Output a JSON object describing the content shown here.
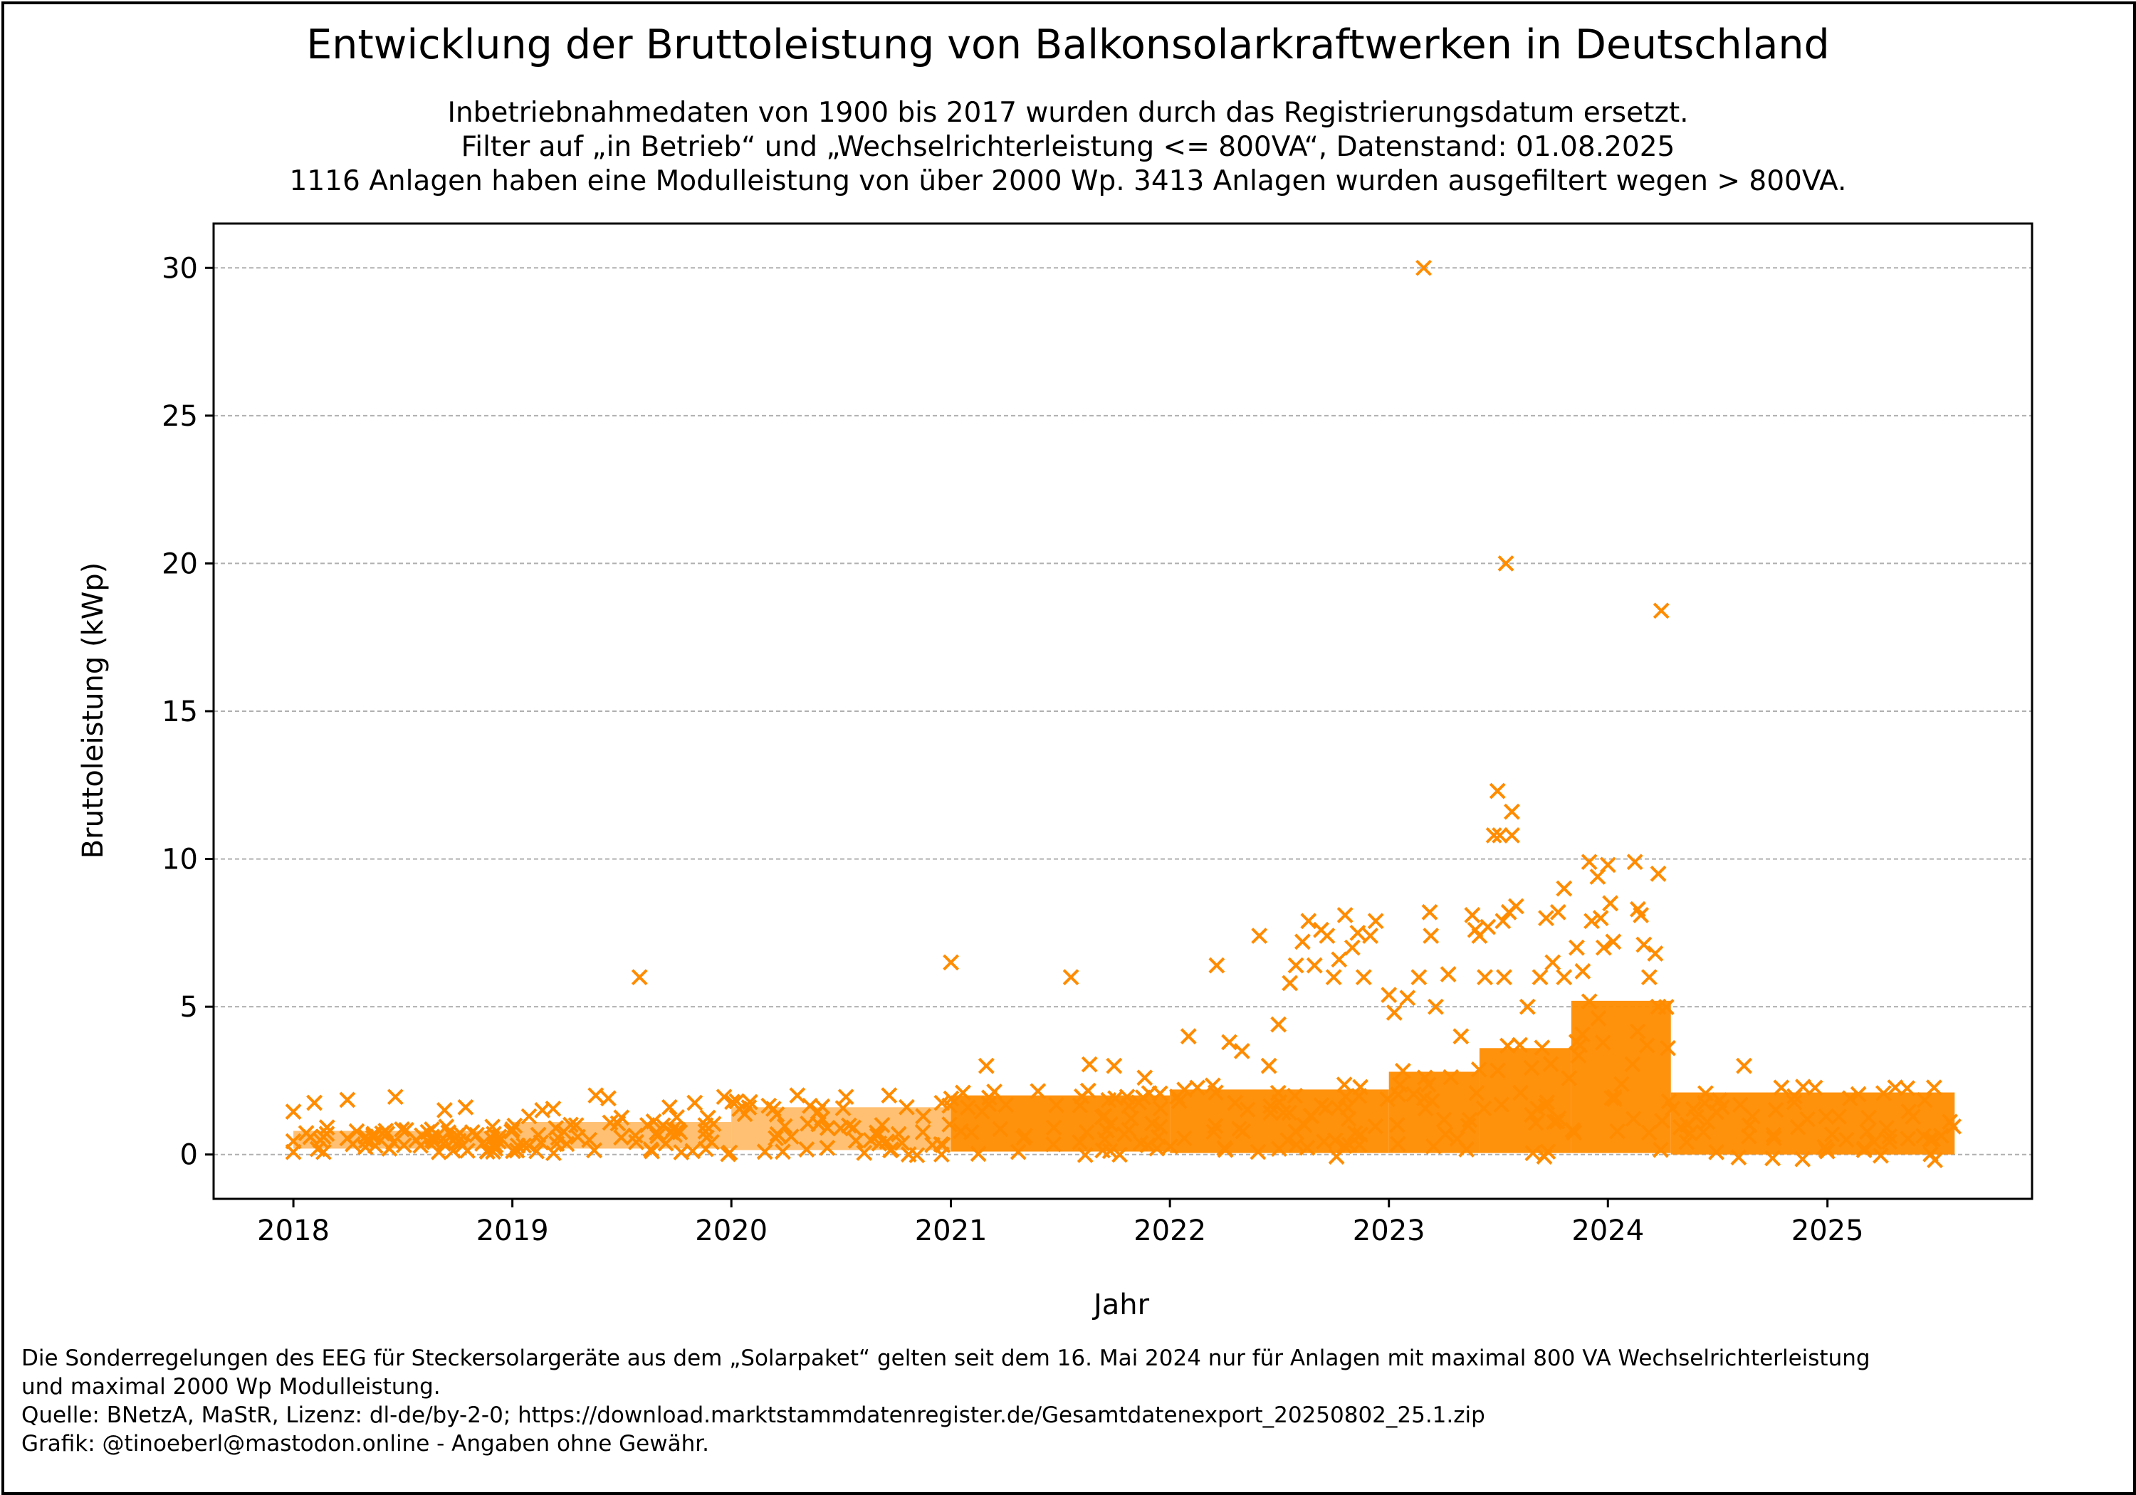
{
  "header": {
    "title": "Entwicklung der Bruttoleistung von Balkonsolarkraftwerken in Deutschland",
    "subtitle_lines": [
      "Inbetriebnahmedaten von 1900 bis 2017 wurden durch das Registrierungsdatum ersetzt.",
      "Filter auf „in Betrieb“ und „Wechselrichterleistung <= 800VA“, Datenstand: 01.08.2025",
      "1116 Anlagen haben eine Modulleistung von über 2000 Wp. 3413 Anlagen wurden ausgefiltert wegen > 800VA."
    ]
  },
  "footer": {
    "lines": [
      "Die Sonderregelungen des EEG für Steckersolargeräte aus dem „Solarpaket“ gelten seit dem 16. Mai 2024 nur für Anlagen mit maximal 800 VA Wechselrichterleistung",
      "und maximal 2000 Wp Modulleistung.",
      "Quelle: BNetzA, MaStR, Lizenz: dl-de/by-2-0; https://download.marktstammdatenregister.de/Gesamtdatenexport_20250802_25.1.zip",
      "Grafik: @tinoeberl@mastodon.online - Angaben ohne Gewähr."
    ]
  },
  "colors": {
    "marker": "#ff8c00",
    "grid": "#b0b0b0",
    "axis": "#000000"
  },
  "chart_data": {
    "type": "scatter",
    "marker": "x",
    "title": "Entwicklung der Bruttoleistung von Balkonsolarkraftwerken in Deutschland",
    "xlabel": "Jahr",
    "ylabel": "Bruttoleistung (kWp)",
    "xlim": [
      "2017-08-21",
      "2025-12-08"
    ],
    "ylim": [
      -1.5,
      31.5
    ],
    "xticks": [
      "2018",
      "2019",
      "2020",
      "2021",
      "2022",
      "2023",
      "2024",
      "2025"
    ],
    "yticks": [
      0,
      5,
      10,
      15,
      20,
      25,
      30
    ],
    "grid": "y-dashed",
    "note": "Points below 2 kWp are too dense to read individually; the dense band is approximated by 'dense_band' envelopes.",
    "points": [
      [
        "2018-01-01",
        1.45
      ],
      [
        "2018-01-01",
        0.45
      ],
      [
        "2018-02-05",
        1.75
      ],
      [
        "2018-02-20",
        0.6
      ],
      [
        "2018-04-01",
        1.85
      ],
      [
        "2018-04-01",
        0.55
      ],
      [
        "2018-04-10",
        0.35
      ],
      [
        "2018-05-15",
        0.7
      ],
      [
        "2018-06-10",
        0.2
      ],
      [
        "2018-06-20",
        1.95
      ],
      [
        "2018-07-01",
        0.85
      ],
      [
        "2018-08-01",
        0.3
      ],
      [
        "2018-08-20",
        0.6
      ],
      [
        "2018-09-10",
        1.5
      ],
      [
        "2018-10-01",
        0.65
      ],
      [
        "2018-10-10",
        0.3
      ],
      [
        "2018-10-15",
        1.6
      ],
      [
        "2018-12-01",
        0.7
      ],
      [
        "2019-01-01",
        0.85
      ],
      [
        "2019-01-10",
        0.3
      ],
      [
        "2019-02-20",
        1.5
      ],
      [
        "2019-03-10",
        1.55
      ],
      [
        "2019-05-20",
        2.0
      ],
      [
        "2019-06-10",
        1.9
      ],
      [
        "2019-08-01",
        6.0
      ],
      [
        "2019-09-20",
        1.6
      ],
      [
        "2019-11-01",
        1.75
      ],
      [
        "2019-12-20",
        1.95
      ],
      [
        "2020-01-10",
        1.8
      ],
      [
        "2020-04-20",
        2.0
      ],
      [
        "2020-07-10",
        1.95
      ],
      [
        "2020-09-20",
        2.0
      ],
      [
        "2021-01-01",
        6.5
      ],
      [
        "2021-03-01",
        3.0
      ],
      [
        "2021-07-20",
        6.0
      ],
      [
        "2021-08-20",
        3.05
      ],
      [
        "2021-09-30",
        3.0
      ],
      [
        "2021-11-20",
        2.6
      ],
      [
        "2022-02-01",
        4.0
      ],
      [
        "2022-03-20",
        6.4
      ],
      [
        "2022-04-10",
        3.8
      ],
      [
        "2022-05-01",
        3.5
      ],
      [
        "2022-05-30",
        7.4
      ],
      [
        "2022-06-15",
        3.0
      ],
      [
        "2022-07-01",
        4.4
      ],
      [
        "2022-07-20",
        5.8
      ],
      [
        "2022-07-30",
        6.4
      ],
      [
        "2022-08-10",
        7.2
      ],
      [
        "2022-08-20",
        7.9
      ],
      [
        "2022-08-30",
        6.4
      ],
      [
        "2022-09-10",
        7.6
      ],
      [
        "2022-09-20",
        7.4
      ],
      [
        "2022-10-01",
        6.0
      ],
      [
        "2022-10-10",
        6.6
      ],
      [
        "2022-10-20",
        8.1
      ],
      [
        "2022-11-01",
        7.0
      ],
      [
        "2022-11-10",
        7.5
      ],
      [
        "2022-11-20",
        6.0
      ],
      [
        "2022-12-01",
        7.4
      ],
      [
        "2022-12-10",
        7.9
      ],
      [
        "2023-01-01",
        5.4
      ],
      [
        "2023-01-10",
        4.8
      ],
      [
        "2023-02-01",
        5.3
      ],
      [
        "2023-02-20",
        6.0
      ],
      [
        "2023-02-28",
        30.0
      ],
      [
        "2023-03-10",
        8.2
      ],
      [
        "2023-03-12",
        7.4
      ],
      [
        "2023-03-20",
        5.0
      ],
      [
        "2023-04-10",
        6.1
      ],
      [
        "2023-05-01",
        4.0
      ],
      [
        "2023-05-20",
        8.1
      ],
      [
        "2023-05-25",
        7.6
      ],
      [
        "2023-06-01",
        7.4
      ],
      [
        "2023-06-10",
        6.0
      ],
      [
        "2023-06-15",
        7.7
      ],
      [
        "2023-06-25",
        10.8
      ],
      [
        "2023-07-05",
        10.8
      ],
      [
        "2023-07-01",
        12.3
      ],
      [
        "2023-07-10",
        7.9
      ],
      [
        "2023-07-12",
        6.0
      ],
      [
        "2023-07-15",
        20.0
      ],
      [
        "2023-07-20",
        8.2
      ],
      [
        "2023-07-25",
        11.6
      ],
      [
        "2023-07-25",
        10.8
      ],
      [
        "2023-08-01",
        8.4
      ],
      [
        "2023-08-20",
        5.0
      ],
      [
        "2023-09-10",
        6.0
      ],
      [
        "2023-09-20",
        8.0
      ],
      [
        "2023-10-01",
        6.5
      ],
      [
        "2023-10-10",
        8.2
      ],
      [
        "2023-10-20",
        9.0
      ],
      [
        "2023-10-20",
        6.0
      ],
      [
        "2023-11-10",
        7.0
      ],
      [
        "2023-11-20",
        6.2
      ],
      [
        "2023-12-01",
        9.9
      ],
      [
        "2023-12-05",
        7.9
      ],
      [
        "2023-12-15",
        9.4
      ],
      [
        "2023-12-20",
        8.0
      ],
      [
        "2023-12-25",
        7.0
      ],
      [
        "2024-01-01",
        9.8
      ],
      [
        "2024-01-05",
        8.5
      ],
      [
        "2024-01-10",
        7.2
      ],
      [
        "2024-02-15",
        9.9
      ],
      [
        "2024-02-20",
        8.3
      ],
      [
        "2024-02-25",
        8.1
      ],
      [
        "2024-03-01",
        7.1
      ],
      [
        "2024-03-10",
        6.0
      ],
      [
        "2024-03-20",
        6.8
      ],
      [
        "2024-03-25",
        9.5
      ],
      [
        "2024-03-25",
        5.0
      ],
      [
        "2024-03-30",
        18.4
      ],
      [
        "2024-04-10",
        3.6
      ],
      [
        "2024-08-15",
        3.0
      ]
    ],
    "dense_band": [
      {
        "from": "2018-01-01",
        "to": "2019-01-01",
        "ymin": 0.2,
        "ymax": 0.8
      },
      {
        "from": "2019-01-01",
        "to": "2020-01-01",
        "ymin": 0.2,
        "ymax": 1.1
      },
      {
        "from": "2020-01-01",
        "to": "2021-01-01",
        "ymin": 0.15,
        "ymax": 1.6
      },
      {
        "from": "2021-01-01",
        "to": "2022-01-01",
        "ymin": 0.1,
        "ymax": 2.0
      },
      {
        "from": "2022-01-01",
        "to": "2023-01-01",
        "ymin": 0.05,
        "ymax": 2.2
      },
      {
        "from": "2023-01-01",
        "to": "2023-06-01",
        "ymin": 0.05,
        "ymax": 2.8
      },
      {
        "from": "2023-06-01",
        "to": "2023-11-01",
        "ymin": 0.05,
        "ymax": 3.6
      },
      {
        "from": "2023-11-01",
        "to": "2024-04-15",
        "ymin": 0.05,
        "ymax": 5.2
      },
      {
        "from": "2024-04-15",
        "to": "2025-08-01",
        "ymin": 0.0,
        "ymax": 2.1
      }
    ]
  }
}
